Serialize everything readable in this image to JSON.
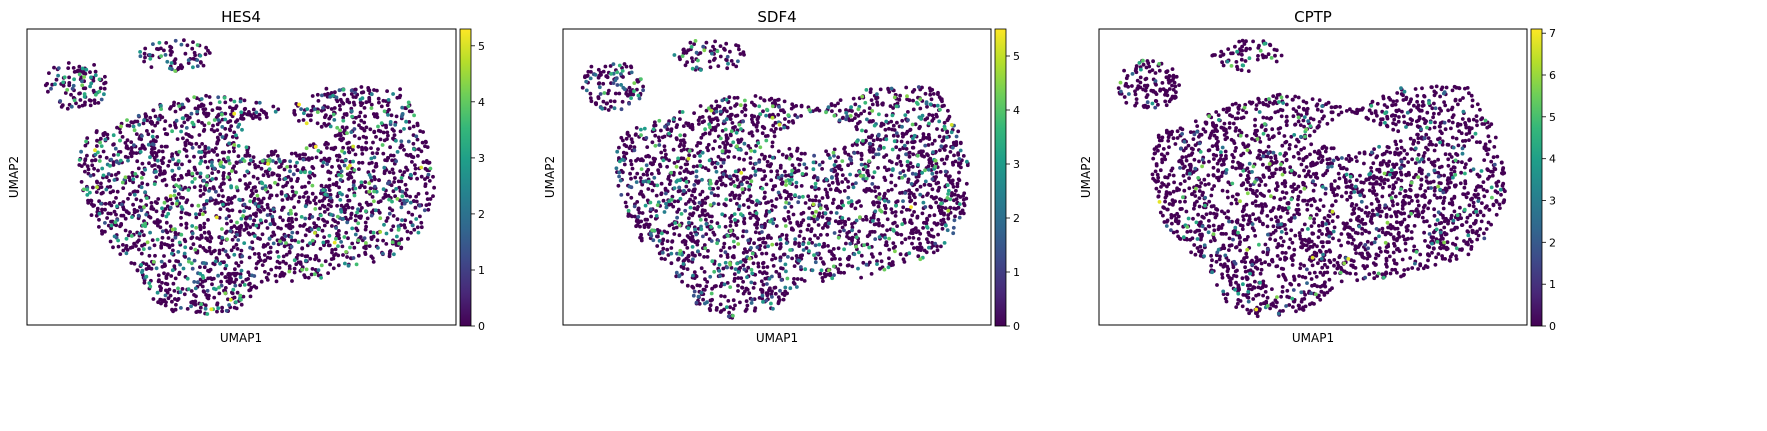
{
  "colormap": "viridis",
  "colors": {
    "viridis_stops": [
      "#440154",
      "#482878",
      "#3e4a89",
      "#31688e",
      "#26828e",
      "#1f9e89",
      "#35b779",
      "#6ece58",
      "#b5de2b",
      "#fde725"
    ]
  },
  "chart_data": [
    {
      "type": "scatter",
      "title": "HES4",
      "xlabel": "UMAP1",
      "ylabel": "UMAP2",
      "xticks": [],
      "yticks": [],
      "grid": false,
      "legend": "colorbar-right",
      "colorbar": {
        "min": 0,
        "max": 5.3,
        "ticks": [
          "0",
          "1",
          "2",
          "3",
          "4",
          "5"
        ]
      },
      "n_points": 2600,
      "fraction_expressing": 0.22,
      "seed": 11
    },
    {
      "type": "scatter",
      "title": "SDF4",
      "xlabel": "UMAP1",
      "ylabel": "UMAP2",
      "xticks": [],
      "yticks": [],
      "grid": false,
      "legend": "colorbar-right",
      "colorbar": {
        "min": 0,
        "max": 5.5,
        "ticks": [
          "0",
          "1",
          "2",
          "3",
          "4",
          "5"
        ]
      },
      "n_points": 2600,
      "fraction_expressing": 0.2,
      "seed": 23
    },
    {
      "type": "scatter",
      "title": "CPTP",
      "xlabel": "UMAP1",
      "ylabel": "UMAP2",
      "xticks": [],
      "yticks": [],
      "grid": false,
      "legend": "colorbar-right",
      "colorbar": {
        "min": 0,
        "max": 7.1,
        "ticks": [
          "0",
          "1",
          "2",
          "3",
          "4",
          "5",
          "6",
          "7"
        ]
      },
      "n_points": 2600,
      "fraction_expressing": 0.1,
      "seed": 37
    }
  ]
}
